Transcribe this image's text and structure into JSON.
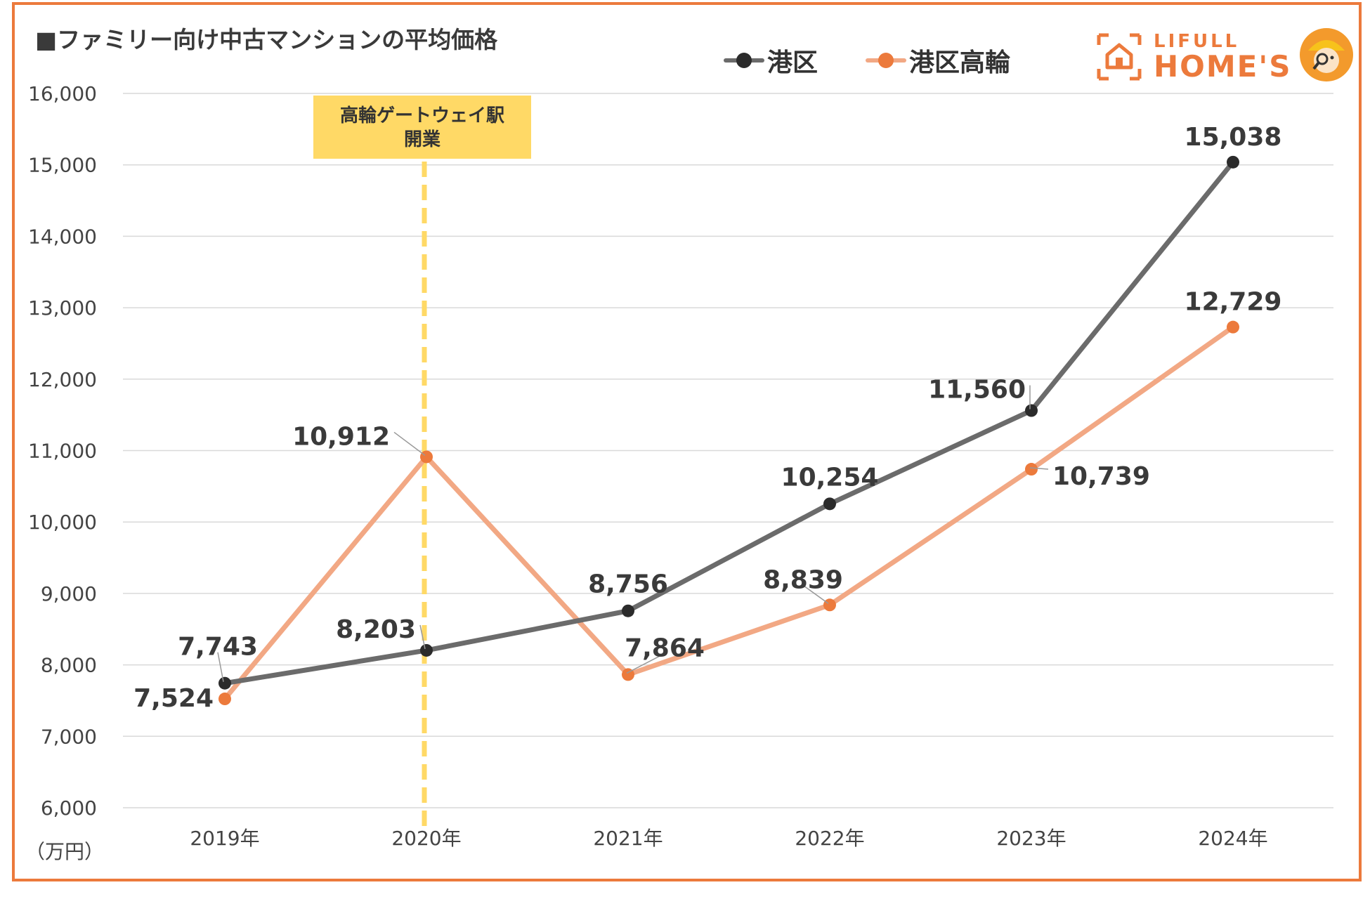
{
  "page": {
    "title": "■ファミリー向け中古マンションの平均価格"
  },
  "brand": {
    "line1": "LIFULL",
    "line2": "HOME'S"
  },
  "legend": [
    {
      "name": "港区",
      "color": "#6b6b6b",
      "dot_color": "#2b2b2b"
    },
    {
      "name": "港区高輪",
      "color": "#f2a884",
      "dot_color": "#ec7a3c"
    }
  ],
  "colors": {
    "frame": "#ec7a3c",
    "grid": "#d9d9d9",
    "axis_text": "#444444",
    "annotation_bg": "#ffd966",
    "annotation_line": "#ffd966"
  },
  "chart_data": {
    "type": "line",
    "title": "■ファミリー向け中古マンションの平均価格",
    "categories": [
      "2019年",
      "2020年",
      "2021年",
      "2022年",
      "2023年",
      "2024年"
    ],
    "series": [
      {
        "name": "港区",
        "values": [
          7743,
          8203,
          8756,
          10254,
          11560,
          15038
        ],
        "labels": [
          "7,743",
          "8,203",
          "8,756",
          "10,254",
          "11,560",
          "15,038"
        ]
      },
      {
        "name": "港区高輪",
        "values": [
          7524,
          10912,
          7864,
          8839,
          10739,
          12729
        ],
        "labels": [
          "7,524",
          "10,912",
          "7,864",
          "8,839",
          "10,739",
          "12,729"
        ]
      }
    ],
    "ylim": [
      6000,
      16000
    ],
    "yticks": [
      6000,
      7000,
      8000,
      9000,
      10000,
      11000,
      12000,
      13000,
      14000,
      15000,
      16000
    ],
    "ytick_labels": [
      "6,000",
      "7,000",
      "8,000",
      "9,000",
      "10,000",
      "11,000",
      "12,000",
      "13,000",
      "14,000",
      "15,000",
      "16,000"
    ],
    "ylabel": "（万円）",
    "xlabel": "",
    "grid": true,
    "legend_position": "top-center",
    "annotation": {
      "category_index": 1,
      "lines": [
        "高輪ゲートウェイ駅",
        "開業"
      ]
    }
  }
}
